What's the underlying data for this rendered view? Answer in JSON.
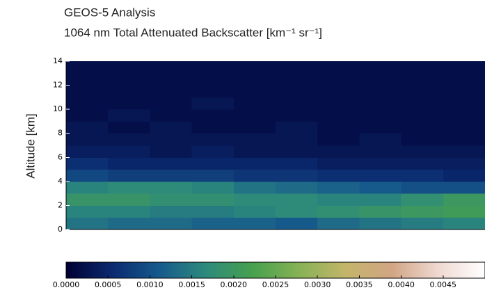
{
  "chart_data": {
    "type": "heatmap",
    "title": "GEOS-5 Analysis",
    "subtitle": "1064 nm Total Attenuated Backscatter [km⁻¹ sr⁻¹]",
    "ylabel": "Altitude [km]",
    "ylim": [
      0,
      14
    ],
    "yticks": [
      0,
      2,
      4,
      6,
      8,
      10,
      12,
      14
    ],
    "y_edges": [
      0,
      1,
      2,
      3,
      4,
      5,
      6,
      7,
      8,
      9,
      10,
      11,
      12,
      13,
      14
    ],
    "values": [
      [
        0.0014,
        0.0013,
        0.0013,
        0.0012,
        0.0012,
        0.0011,
        0.0013,
        0.0014,
        0.0015,
        0.0016
      ],
      [
        0.0016,
        0.0016,
        0.0015,
        0.0015,
        0.0016,
        0.0017,
        0.0018,
        0.0019,
        0.002,
        0.0021
      ],
      [
        0.0019,
        0.0019,
        0.0018,
        0.0018,
        0.0017,
        0.0017,
        0.0016,
        0.0016,
        0.0018,
        0.002
      ],
      [
        0.0016,
        0.0017,
        0.0017,
        0.0016,
        0.0014,
        0.0013,
        0.0012,
        0.0011,
        0.001,
        0.001
      ],
      [
        0.0009,
        0.0008,
        0.0008,
        0.0008,
        0.0007,
        0.0007,
        0.0006,
        0.0006,
        0.0006,
        0.0005
      ],
      [
        0.0006,
        0.0005,
        0.0005,
        0.0005,
        0.0005,
        0.0005,
        0.0004,
        0.0004,
        0.0004,
        0.0004
      ],
      [
        0.0004,
        0.0004,
        0.0003,
        0.0004,
        0.0003,
        0.0003,
        0.0003,
        0.0003,
        0.0003,
        0.0003
      ],
      [
        0.0003,
        0.0003,
        0.0003,
        0.0003,
        0.0003,
        0.0003,
        0.0002,
        0.0003,
        0.0002,
        0.0002
      ],
      [
        0.0003,
        0.0002,
        0.0003,
        0.0002,
        0.0002,
        0.0003,
        0.0002,
        0.0002,
        0.0002,
        0.0002
      ],
      [
        0.0002,
        0.0003,
        0.0002,
        0.0002,
        0.0002,
        0.0002,
        0.0002,
        0.0002,
        0.0002,
        0.0002
      ],
      [
        0.0002,
        0.0002,
        0.0002,
        0.0003,
        0.0002,
        0.0002,
        0.0002,
        0.0002,
        0.0002,
        0.0002
      ],
      [
        0.0002,
        0.0002,
        0.0002,
        0.0002,
        0.0002,
        0.0002,
        0.0002,
        0.0002,
        0.0002,
        0.0002
      ],
      [
        0.0002,
        0.0002,
        0.0002,
        0.0002,
        0.0002,
        0.0002,
        0.0002,
        0.0002,
        0.0002,
        0.0002
      ],
      [
        0.0002,
        0.0002,
        0.0002,
        0.0002,
        0.0002,
        0.0002,
        0.0002,
        0.0002,
        0.0002,
        0.0002
      ]
    ],
    "colormap": [
      "#000033",
      "#0b2a70",
      "#165a8c",
      "#2d8a7c",
      "#47a04e",
      "#86b255",
      "#c3b56a",
      "#d2a584",
      "#efd9d2",
      "#ffffff"
    ],
    "colorbar_lim": [
      0,
      0.005
    ],
    "colorbar_ticks": [
      {
        "value": 0,
        "label": "0.0000"
      },
      {
        "value": 0.0005,
        "label": "0.0005"
      },
      {
        "value": 0.001,
        "label": "0.0010"
      },
      {
        "value": 0.0015,
        "label": "0.0015"
      },
      {
        "value": 0.002,
        "label": "0.0020"
      },
      {
        "value": 0.0025,
        "label": "0.0025"
      },
      {
        "value": 0.003,
        "label": "0.0030"
      },
      {
        "value": 0.0035,
        "label": "0.0035"
      },
      {
        "value": 0.004,
        "label": "0.0040"
      },
      {
        "value": 0.0045,
        "label": "0.0045"
      }
    ]
  }
}
